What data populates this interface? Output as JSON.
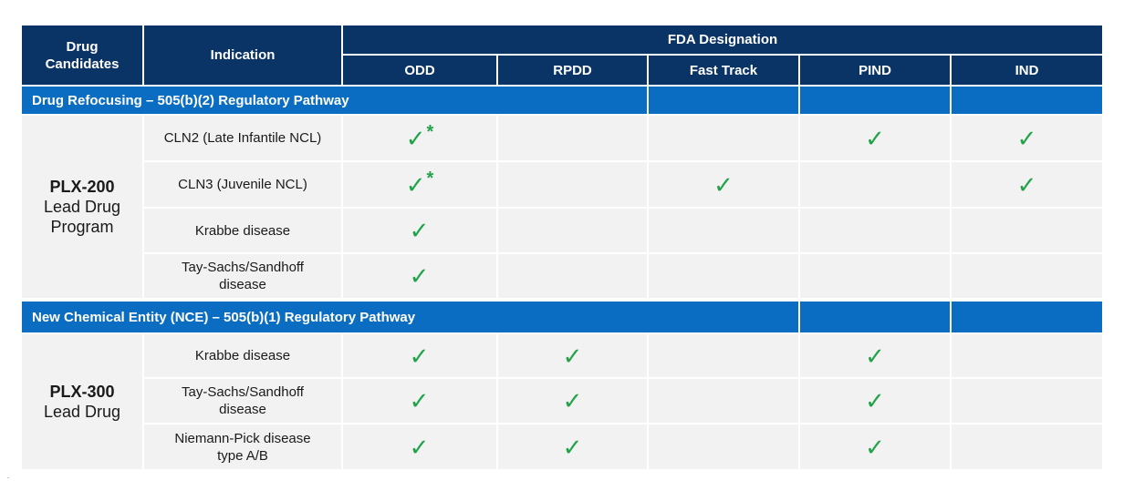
{
  "header": {
    "drug_candidates": "Drug Candidates",
    "indication": "Indication",
    "fda_designation": "FDA Designation",
    "columns": [
      "ODD",
      "RPDD",
      "Fast Track",
      "PIND",
      "IND"
    ]
  },
  "sections": [
    {
      "title": "Drug Refocusing – 505(b)(2) Regulatory Pathway",
      "drug_name": "PLX-200",
      "drug_desc": "Lead Drug Program",
      "rows": [
        {
          "indication": "CLN2 (Late Infantile NCL)",
          "odd": "✓",
          "odd_note": "*",
          "rpdd": "",
          "fast_track": "",
          "pind": "✓",
          "ind": "✓"
        },
        {
          "indication": "CLN3 (Juvenile NCL)",
          "odd": "✓",
          "odd_note": "*",
          "rpdd": "",
          "fast_track": "✓",
          "pind": "",
          "ind": "✓"
        },
        {
          "indication": "Krabbe disease",
          "odd": "✓",
          "odd_note": "",
          "rpdd": "",
          "fast_track": "",
          "pind": "",
          "ind": ""
        },
        {
          "indication": "Tay-Sachs/Sandhoff disease",
          "odd": "✓",
          "odd_note": "",
          "rpdd": "",
          "fast_track": "",
          "pind": "",
          "ind": ""
        }
      ]
    },
    {
      "title": "New Chemical Entity (NCE) – 505(b)(1) Regulatory Pathway",
      "drug_name": "PLX-300",
      "drug_desc": "Lead Drug",
      "rows": [
        {
          "indication": "Krabbe disease",
          "odd": "✓",
          "odd_note": "",
          "rpdd": "✓",
          "fast_track": "",
          "pind": "✓",
          "ind": ""
        },
        {
          "indication": "Tay-Sachs/Sandhoff disease",
          "odd": "✓",
          "odd_note": "",
          "rpdd": "✓",
          "fast_track": "",
          "pind": "✓",
          "ind": ""
        },
        {
          "indication": "Niemann-Pick disease type A/B",
          "odd": "✓",
          "odd_note": "",
          "rpdd": "✓",
          "fast_track": "",
          "pind": "✓",
          "ind": ""
        }
      ]
    }
  ],
  "colors": {
    "header_bg": "#0b3466",
    "band_bg": "#0a6dc2",
    "cell_bg": "#f2f2f2",
    "check": "#22a34a"
  },
  "footnote_mark": "-"
}
